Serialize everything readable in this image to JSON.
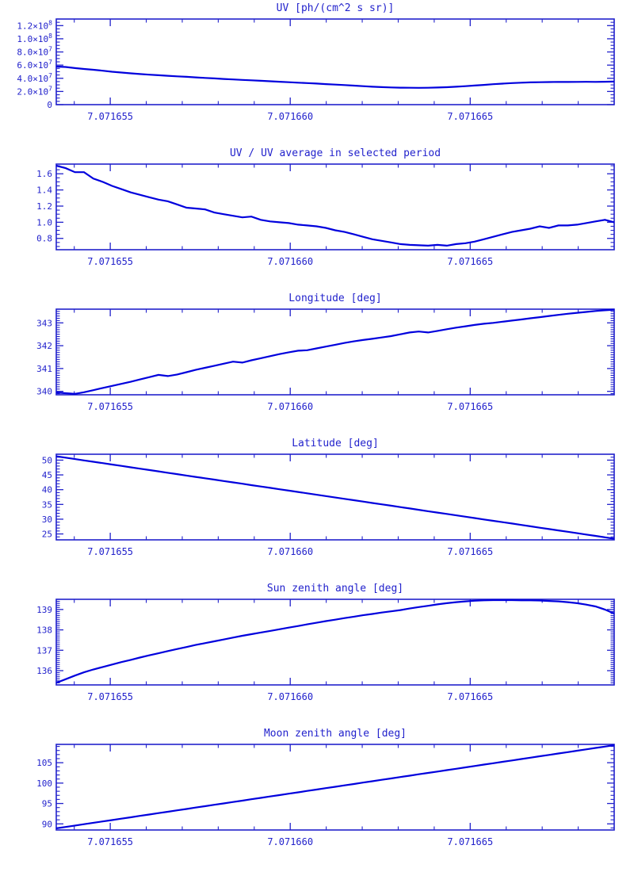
{
  "style": {
    "accent_color": "#2222cc",
    "line_color": "#0000dd",
    "background_color": "#ffffff"
  },
  "chart_data": {
    "type": "line",
    "layout": "6 stacked panels, shared x-axis, blue box axes with inward major/minor ticks on all four sides, no grid, no legend",
    "x_range": [
      7.0716535,
      7.071669
    ],
    "x_ticks": {
      "values": [
        7.071655,
        7.07166,
        7.071665
      ],
      "labels": [
        "7.071655",
        "7.071660",
        "7.071665"
      ]
    },
    "x_minor_step": 1e-06,
    "common_x": [
      7.0716535,
      7.07165376,
      7.07165402,
      7.07165427,
      7.07165453,
      7.07165479,
      7.07165505,
      7.07165531,
      7.07165557,
      7.07165582,
      7.07165608,
      7.07165634,
      7.0716566,
      7.07165686,
      7.07165712,
      7.07165737,
      7.07165763,
      7.07165789,
      7.07165815,
      7.07165841,
      7.07165867,
      7.07165892,
      7.07165918,
      7.07165944,
      7.0716597,
      7.07165996,
      7.07166022,
      7.07166047,
      7.07166073,
      7.07166099,
      7.07166125,
      7.07166151,
      7.07166177,
      7.07166202,
      7.07166228,
      7.07166254,
      7.0716628,
      7.07166306,
      7.07166332,
      7.07166357,
      7.07166383,
      7.07166409,
      7.07166435,
      7.07166461,
      7.07166487,
      7.07166512,
      7.07166538,
      7.07166564,
      7.0716659,
      7.07166616,
      7.07166642,
      7.07166667,
      7.07166693,
      7.07166719,
      7.07166745,
      7.07166771,
      7.07166797,
      7.07166822,
      7.07166848,
      7.07166874,
      7.071669
    ],
    "charts": [
      {
        "id": "uv",
        "title": "UV [ph/(cm^2 s sr)]",
        "ylim": [
          0,
          130000000.0
        ],
        "y_ticks": {
          "values": [
            0,
            20000000.0,
            40000000.0,
            60000000.0,
            80000000.0,
            100000000.0,
            120000000.0
          ],
          "labels": [
            "0",
            "2.0×10^7",
            "4.0×10^7",
            "6.0×10^7",
            "8.0×10^7",
            "1.0×10^8",
            "1.2×10^8"
          ]
        },
        "y_minor_step": 5000000.0,
        "y": [
          57800000.0,
          57200000.0,
          55500000.0,
          54200000.0,
          53000000.0,
          51500000.0,
          50000000.0,
          48800000.0,
          47600000.0,
          46500000.0,
          45500000.0,
          44600000.0,
          43800000.0,
          43000000.0,
          42200000.0,
          41400000.0,
          40600000.0,
          39800000.0,
          39000000.0,
          38300000.0,
          37600000.0,
          36900000.0,
          36200000.0,
          35500000.0,
          34800000.0,
          34100000.0,
          33400000.0,
          32700000.0,
          32000000.0,
          31200000.0,
          30500000.0,
          29700000.0,
          28900000.0,
          28000000.0,
          27200000.0,
          26600000.0,
          26100000.0,
          25800000.0,
          25600000.0,
          25500000.0,
          25600000.0,
          26000000.0,
          26500000.0,
          27200000.0,
          28000000.0,
          29000000.0,
          30000000.0,
          31000000.0,
          31900000.0,
          32700000.0,
          33300000.0,
          33800000.0,
          34100000.0,
          34300000.0,
          34500000.0,
          34400000.0,
          34600000.0,
          34700000.0,
          34600000.0,
          34800000.0,
          35000000.0
        ]
      },
      {
        "id": "uv-ratio",
        "title": "UV / UV average in selected period",
        "ylim": [
          0.66,
          1.72
        ],
        "y_ticks": {
          "values": [
            0.8,
            1.0,
            1.2,
            1.4,
            1.6
          ],
          "labels": [
            "0.8",
            "1.0",
            "1.2",
            "1.4",
            "1.6"
          ]
        },
        "y_minor_step": 0.05,
        "y": [
          1.7,
          1.67,
          1.62,
          1.62,
          1.54,
          1.5,
          1.45,
          1.41,
          1.37,
          1.34,
          1.31,
          1.28,
          1.26,
          1.22,
          1.18,
          1.17,
          1.16,
          1.12,
          1.1,
          1.08,
          1.06,
          1.07,
          1.03,
          1.01,
          1.0,
          0.99,
          0.97,
          0.96,
          0.95,
          0.93,
          0.9,
          0.88,
          0.85,
          0.82,
          0.79,
          0.77,
          0.75,
          0.73,
          0.72,
          0.715,
          0.71,
          0.72,
          0.71,
          0.73,
          0.74,
          0.76,
          0.79,
          0.82,
          0.85,
          0.88,
          0.9,
          0.92,
          0.95,
          0.93,
          0.96,
          0.96,
          0.97,
          0.99,
          1.01,
          1.03,
          1.0
        ]
      },
      {
        "id": "longitude",
        "title": "Longitude [deg]",
        "ylim": [
          339.85,
          343.6
        ],
        "y_ticks": {
          "values": [
            340,
            341,
            342,
            343
          ],
          "labels": [
            "340",
            "341",
            "342",
            "343"
          ]
        },
        "y_minor_step": 0.1,
        "y": [
          339.95,
          339.92,
          339.89,
          339.96,
          340.05,
          340.15,
          340.24,
          340.33,
          340.42,
          340.52,
          340.62,
          340.72,
          340.67,
          340.74,
          340.84,
          340.94,
          341.03,
          341.12,
          341.21,
          341.3,
          341.26,
          341.36,
          341.45,
          341.54,
          341.63,
          341.71,
          341.78,
          341.8,
          341.88,
          341.96,
          342.04,
          342.12,
          342.19,
          342.25,
          342.3,
          342.36,
          342.42,
          342.5,
          342.58,
          342.62,
          342.58,
          342.65,
          342.72,
          342.79,
          342.85,
          342.91,
          342.96,
          343.0,
          343.05,
          343.1,
          343.15,
          343.2,
          343.25,
          343.3,
          343.35,
          343.4,
          343.44,
          343.48,
          343.52,
          343.55,
          343.58
        ]
      },
      {
        "id": "latitude",
        "title": "Latitude [deg]",
        "ylim": [
          23,
          52
        ],
        "y_ticks": {
          "values": [
            25,
            30,
            35,
            40,
            45,
            50
          ],
          "labels": [
            "25",
            "30",
            "35",
            "40",
            "45",
            "50"
          ]
        },
        "y_minor_step": 1,
        "y": [
          51.3,
          50.84,
          50.37,
          49.91,
          49.44,
          48.98,
          48.51,
          48.05,
          47.58,
          47.12,
          46.65,
          46.19,
          45.72,
          45.26,
          44.79,
          44.33,
          43.86,
          43.4,
          42.93,
          42.47,
          42.0,
          41.54,
          41.07,
          40.61,
          40.14,
          39.68,
          39.21,
          38.75,
          38.28,
          37.82,
          37.35,
          36.89,
          36.42,
          35.96,
          35.49,
          35.03,
          34.56,
          34.1,
          33.63,
          33.17,
          32.7,
          32.24,
          31.77,
          31.31,
          30.84,
          30.38,
          29.91,
          29.45,
          28.98,
          28.52,
          28.05,
          27.59,
          27.12,
          26.66,
          26.19,
          25.73,
          25.26,
          24.8,
          24.33,
          23.87,
          23.4
        ]
      },
      {
        "id": "sun-zenith",
        "title": "Sun zenith angle [deg]",
        "ylim": [
          135.3,
          139.5
        ],
        "y_ticks": {
          "values": [
            136,
            137,
            138,
            139
          ],
          "labels": [
            "136",
            "137",
            "138",
            "139"
          ]
        },
        "y_minor_step": 0.1,
        "y": [
          135.4,
          135.58,
          135.76,
          135.92,
          136.06,
          136.18,
          136.3,
          136.42,
          136.53,
          136.64,
          136.75,
          136.85,
          136.96,
          137.06,
          137.16,
          137.26,
          137.35,
          137.44,
          137.53,
          137.62,
          137.71,
          137.79,
          137.87,
          137.95,
          138.03,
          138.11,
          138.19,
          138.27,
          138.35,
          138.43,
          138.5,
          138.58,
          138.65,
          138.72,
          138.78,
          138.85,
          138.91,
          138.97,
          139.05,
          139.12,
          139.18,
          139.25,
          139.31,
          139.36,
          139.4,
          139.43,
          139.45,
          139.46,
          139.46,
          139.46,
          139.45,
          139.45,
          139.44,
          139.42,
          139.4,
          139.36,
          139.31,
          139.24,
          139.15,
          139.0,
          138.8
        ]
      },
      {
        "id": "moon-zenith",
        "title": "Moon zenith angle [deg]",
        "ylim": [
          88.5,
          109.5
        ],
        "y_ticks": {
          "values": [
            90,
            95,
            100,
            105
          ],
          "labels": [
            "90",
            "95",
            "100",
            "105"
          ]
        },
        "y_minor_step": 1,
        "y": [
          88.9,
          89.24,
          89.58,
          89.92,
          90.26,
          90.6,
          90.94,
          91.28,
          91.62,
          91.96,
          92.3,
          92.64,
          92.98,
          93.32,
          93.66,
          94.0,
          94.34,
          94.68,
          95.02,
          95.36,
          95.7,
          96.04,
          96.38,
          96.72,
          97.06,
          97.4,
          97.74,
          98.08,
          98.42,
          98.76,
          99.1,
          99.44,
          99.78,
          100.12,
          100.46,
          100.8,
          101.14,
          101.48,
          101.82,
          102.16,
          102.5,
          102.84,
          103.18,
          103.52,
          103.86,
          104.2,
          104.54,
          104.88,
          105.22,
          105.56,
          105.9,
          106.24,
          106.58,
          106.92,
          107.26,
          107.6,
          107.94,
          108.28,
          108.62,
          108.96,
          109.3
        ]
      }
    ]
  }
}
